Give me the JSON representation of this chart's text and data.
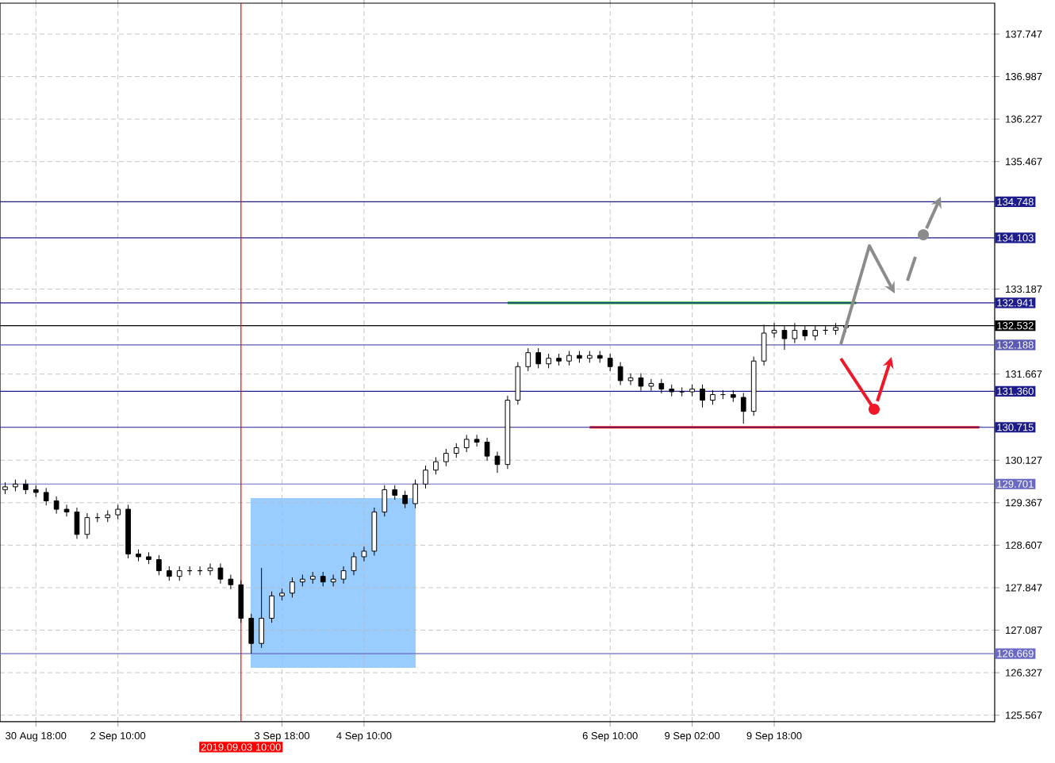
{
  "chart_data": {
    "type": "candlestick",
    "categories": [
      null,
      null,
      null,
      "30 Aug 18:00",
      null,
      null,
      null,
      null,
      null,
      null,
      null,
      "2 Sep 10:00",
      null,
      null,
      null,
      null,
      null,
      null,
      null,
      null,
      null,
      null,
      null,
      "2019.09.03 10:00",
      null,
      null,
      null,
      "3 Sep 18:00",
      null,
      null,
      null,
      null,
      null,
      null,
      null,
      "4 Sep 10:00",
      null,
      null,
      null,
      null,
      null,
      null,
      null,
      null,
      null,
      null,
      null,
      null,
      null,
      null,
      null,
      null,
      null,
      null,
      null,
      null,
      null,
      null,
      null,
      "6 Sep 10:00",
      null,
      null,
      null,
      null,
      null,
      null,
      null,
      "9 Sep 02:00",
      null,
      null,
      null,
      null,
      null,
      null,
      null,
      "9 Sep 18:00",
      null,
      null,
      null,
      null,
      null,
      null,
      null,
      null,
      null,
      null,
      null,
      null,
      null,
      null,
      null,
      null,
      null,
      null,
      null,
      null,
      null
    ],
    "ohlc": [
      [
        129.6,
        129.73,
        129.52,
        129.65
      ],
      [
        129.65,
        129.78,
        129.57,
        129.7
      ],
      [
        129.7,
        129.78,
        129.52,
        129.6
      ],
      [
        129.6,
        129.68,
        129.47,
        129.55
      ],
      [
        129.55,
        129.63,
        129.32,
        129.4
      ],
      [
        129.4,
        129.48,
        129.17,
        129.25
      ],
      [
        129.25,
        129.33,
        129.12,
        129.2
      ],
      [
        129.2,
        129.28,
        128.72,
        128.8
      ],
      [
        128.8,
        129.18,
        128.72,
        129.1
      ],
      [
        129.1,
        129.18,
        129.02,
        129.1
      ],
      [
        129.1,
        129.23,
        129.02,
        129.15
      ],
      [
        129.15,
        129.33,
        129.07,
        129.25
      ],
      [
        129.25,
        129.33,
        128.37,
        128.45
      ],
      [
        128.45,
        128.53,
        128.32,
        128.4
      ],
      [
        128.4,
        128.48,
        128.27,
        128.35
      ],
      [
        128.35,
        128.43,
        128.07,
        128.15
      ],
      [
        128.15,
        128.23,
        127.97,
        128.05
      ],
      [
        128.05,
        128.23,
        127.97,
        128.15
      ],
      [
        128.15,
        128.23,
        128.07,
        128.15
      ],
      [
        128.15,
        128.23,
        128.07,
        128.15
      ],
      [
        128.15,
        128.28,
        128.07,
        128.2
      ],
      [
        128.2,
        128.28,
        127.92,
        128.0
      ],
      [
        128.0,
        128.08,
        127.82,
        127.9
      ],
      [
        127.9,
        127.98,
        127.22,
        127.3
      ],
      [
        127.3,
        127.38,
        126.669,
        126.85
      ],
      [
        126.85,
        128.2,
        126.77,
        127.3
      ],
      [
        127.3,
        127.78,
        127.22,
        127.7
      ],
      [
        127.7,
        127.83,
        127.62,
        127.75
      ],
      [
        127.75,
        128.03,
        127.67,
        127.95
      ],
      [
        127.95,
        128.08,
        127.87,
        128.0
      ],
      [
        128.0,
        128.13,
        127.92,
        128.05
      ],
      [
        128.05,
        128.13,
        127.87,
        127.95
      ],
      [
        127.95,
        128.08,
        127.87,
        128.0
      ],
      [
        128.0,
        128.23,
        127.92,
        128.15
      ],
      [
        128.15,
        128.48,
        128.07,
        128.4
      ],
      [
        128.4,
        128.58,
        128.32,
        128.5
      ],
      [
        128.5,
        129.28,
        128.42,
        129.2
      ],
      [
        129.2,
        129.68,
        129.12,
        129.6
      ],
      [
        129.6,
        129.68,
        129.42,
        129.5
      ],
      [
        129.5,
        129.58,
        129.27,
        129.35
      ],
      [
        129.35,
        129.78,
        129.27,
        129.7
      ],
      [
        129.7,
        130.03,
        129.62,
        129.95
      ],
      [
        129.95,
        130.18,
        129.87,
        130.1
      ],
      [
        130.1,
        130.33,
        130.02,
        130.25
      ],
      [
        130.25,
        130.43,
        130.17,
        130.35
      ],
      [
        130.35,
        130.58,
        130.27,
        130.5
      ],
      [
        130.5,
        130.58,
        130.37,
        130.45
      ],
      [
        130.45,
        130.53,
        130.12,
        130.2
      ],
      [
        130.2,
        130.28,
        129.9,
        130.05
      ],
      [
        130.05,
        131.28,
        129.97,
        131.2
      ],
      [
        131.2,
        131.88,
        131.12,
        131.8
      ],
      [
        131.8,
        132.13,
        131.72,
        132.05
      ],
      [
        132.05,
        132.13,
        131.77,
        131.85
      ],
      [
        131.85,
        132.03,
        131.77,
        131.95
      ],
      [
        131.95,
        132.03,
        131.82,
        131.9
      ],
      [
        131.9,
        132.08,
        131.82,
        132.0
      ],
      [
        132.0,
        132.08,
        131.87,
        131.95
      ],
      [
        131.95,
        132.08,
        131.87,
        132.0
      ],
      [
        132.0,
        132.08,
        131.87,
        131.95
      ],
      [
        131.95,
        132.03,
        131.72,
        131.8
      ],
      [
        131.8,
        131.88,
        131.47,
        131.55
      ],
      [
        131.55,
        131.68,
        131.47,
        131.6
      ],
      [
        131.6,
        131.68,
        131.37,
        131.45
      ],
      [
        131.45,
        131.58,
        131.37,
        131.5
      ],
      [
        131.5,
        131.58,
        131.32,
        131.4
      ],
      [
        131.4,
        131.48,
        131.27,
        131.35
      ],
      [
        131.35,
        131.43,
        131.27,
        131.35
      ],
      [
        131.35,
        131.48,
        131.27,
        131.4
      ],
      [
        131.4,
        131.48,
        131.07,
        131.2
      ],
      [
        131.2,
        131.38,
        131.12,
        131.3
      ],
      [
        131.3,
        131.38,
        131.22,
        131.3
      ],
      [
        131.3,
        131.38,
        131.17,
        131.25
      ],
      [
        131.25,
        131.33,
        130.78,
        131.0
      ],
      [
        131.0,
        131.98,
        130.92,
        131.9
      ],
      [
        131.9,
        132.55,
        131.82,
        132.4
      ],
      [
        132.4,
        132.58,
        132.32,
        132.45
      ],
      [
        132.45,
        132.53,
        132.1,
        132.3
      ],
      [
        132.3,
        132.58,
        132.22,
        132.45
      ],
      [
        132.45,
        132.53,
        132.27,
        132.35
      ],
      [
        132.35,
        132.53,
        132.27,
        132.45
      ],
      [
        132.45,
        132.53,
        132.37,
        132.45
      ],
      [
        132.45,
        132.58,
        132.37,
        132.5
      ],
      [
        132.5,
        132.61,
        132.42,
        132.53
      ],
      null,
      null,
      null,
      null,
      null,
      null,
      null,
      null,
      null,
      null,
      null,
      null,
      null,
      null
    ],
    "series": [
      {
        "type": "line",
        "color": "#33bb33",
        "values": [
          null,
          null,
          null,
          null,
          null,
          null,
          null,
          null,
          null,
          null,
          null,
          null,
          null,
          null,
          null,
          null,
          null,
          null,
          null,
          null,
          null,
          null,
          null,
          null,
          null,
          null,
          null,
          null,
          null,
          null,
          null,
          null,
          null,
          null,
          null,
          null,
          null,
          null,
          null,
          null,
          null,
          null,
          null,
          null,
          null,
          null,
          null,
          null,
          null,
          132.941,
          132.941,
          132.941,
          132.941,
          132.941,
          132.941,
          132.941,
          132.941,
          132.941,
          132.941,
          132.941,
          132.941,
          132.941,
          132.941,
          132.941,
          132.941,
          132.941,
          132.941,
          132.941,
          132.941,
          132.941,
          132.941,
          132.941,
          132.941,
          132.941,
          132.941,
          132.941,
          132.941,
          132.941,
          132.941,
          132.941,
          132.941,
          132.941,
          132.941,
          132.941,
          null,
          null,
          null,
          null,
          null,
          null,
          null,
          null,
          null,
          null,
          null,
          null,
          null
        ]
      },
      {
        "type": "line",
        "color": "#ee1111",
        "values": [
          null,
          null,
          null,
          null,
          null,
          null,
          null,
          null,
          null,
          null,
          null,
          null,
          null,
          null,
          null,
          null,
          null,
          null,
          null,
          null,
          null,
          null,
          null,
          null,
          null,
          null,
          null,
          null,
          null,
          null,
          null,
          null,
          null,
          null,
          null,
          null,
          null,
          null,
          null,
          null,
          null,
          null,
          null,
          null,
          null,
          null,
          null,
          null,
          null,
          null,
          null,
          null,
          null,
          null,
          null,
          null,
          null,
          130.715,
          130.715,
          130.715,
          130.715,
          130.715,
          130.715,
          130.715,
          130.715,
          130.715,
          130.715,
          130.715,
          130.715,
          130.715,
          130.715,
          130.715,
          130.715,
          130.715,
          130.715,
          130.715,
          130.715,
          130.715,
          130.715,
          130.715,
          130.715,
          130.715,
          130.715,
          130.715,
          130.715,
          130.715,
          130.715,
          130.715,
          130.715,
          130.715,
          130.715,
          130.715,
          130.715,
          130.715,
          130.715,
          130.715,
          null
        ]
      }
    ],
    "ylim": [
      125.45,
      138.3
    ],
    "yticks": [
      125.567,
      126.327,
      127.087,
      127.847,
      128.607,
      129.367,
      130.127,
      131.667,
      133.187,
      135.467,
      136.227,
      136.987,
      137.747
    ],
    "grid": true,
    "ref_lines": [
      {
        "axis": "y",
        "value": 134.748,
        "label": "134.748",
        "color": "#1c1c8c"
      },
      {
        "axis": "y",
        "value": 134.103,
        "label": "134.103",
        "color": "#1c1c8c"
      },
      {
        "axis": "y",
        "value": 132.941,
        "label": "132.941",
        "color": "#1c1c8c"
      },
      {
        "axis": "y",
        "value": 132.532,
        "label": "132.532",
        "color": "#000000"
      },
      {
        "axis": "y",
        "value": 132.188,
        "label": "132.188",
        "color": "#5a5ab4"
      },
      {
        "axis": "y",
        "value": 131.36,
        "label": "131.360",
        "color": "#1c1c8c"
      },
      {
        "axis": "y",
        "value": 130.715,
        "label": "130.715",
        "color": "#1c1c8c"
      },
      {
        "axis": "y",
        "value": 129.701,
        "label": "129.701",
        "color": "#6a6ac4"
      },
      {
        "axis": "y",
        "value": 126.669,
        "label": "126.669",
        "color": "#6a6ac4"
      },
      {
        "axis": "x",
        "value": "2019.09.03 10:00",
        "color": "#ff0000"
      }
    ]
  }
}
